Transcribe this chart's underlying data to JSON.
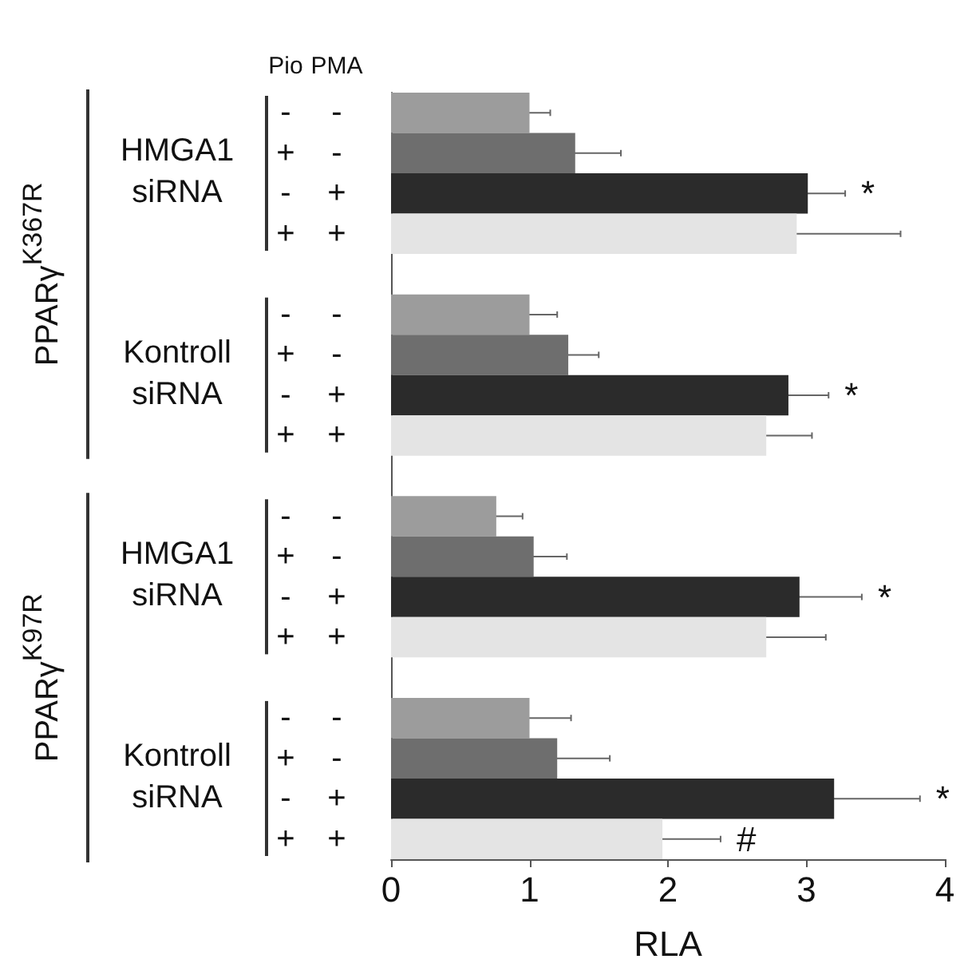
{
  "chart_data": {
    "type": "bar",
    "orientation": "horizontal",
    "xlabel": "RLA",
    "categories": [
      "- -",
      "+ -",
      "- +",
      "+ +",
      null,
      "- -",
      "+ -",
      "- +",
      "+ +",
      null,
      "- -",
      "+ -",
      "- +",
      "+ +",
      null,
      "- -",
      "+ -",
      "- +",
      "+ +"
    ],
    "values": [
      1.0,
      1.33,
      3.01,
      2.93,
      null,
      1.0,
      1.28,
      2.87,
      2.71,
      null,
      0.76,
      1.03,
      2.95,
      2.71,
      null,
      1.0,
      1.2,
      3.2,
      1.96
    ],
    "errors": [
      0.15,
      0.33,
      0.27,
      0.75,
      null,
      0.2,
      0.22,
      0.29,
      0.33,
      null,
      0.19,
      0.24,
      0.45,
      0.43,
      null,
      0.3,
      0.38,
      0.62,
      0.42
    ],
    "value_labels": [
      null,
      null,
      "*",
      null,
      null,
      null,
      null,
      "*",
      null,
      null,
      null,
      null,
      "*",
      null,
      null,
      null,
      null,
      "*",
      "#"
    ],
    "colors": [
      "#9c9c9c",
      "#6e6e6e",
      "#2b2b2b",
      "#e4e4e4",
      null,
      "#9c9c9c",
      "#6e6e6e",
      "#2b2b2b",
      "#e4e4e4",
      null,
      "#9c9c9c",
      "#6e6e6e",
      "#2b2b2b",
      "#e4e4e4",
      null,
      "#9c9c9c",
      "#6e6e6e",
      "#2b2b2b",
      "#e4e4e4"
    ],
    "xlim": [
      0,
      4
    ],
    "xticks": [
      0,
      1,
      2,
      3,
      4
    ],
    "annotations": [
      "Pio",
      "PMA",
      "HMGA1 siRNA",
      "Kontroll siRNA",
      "HMGA1 siRNA",
      "Kontroll siRNA",
      "PPARγ$^{K367R}$",
      "PPARγ$^{K97R}$"
    ]
  }
}
